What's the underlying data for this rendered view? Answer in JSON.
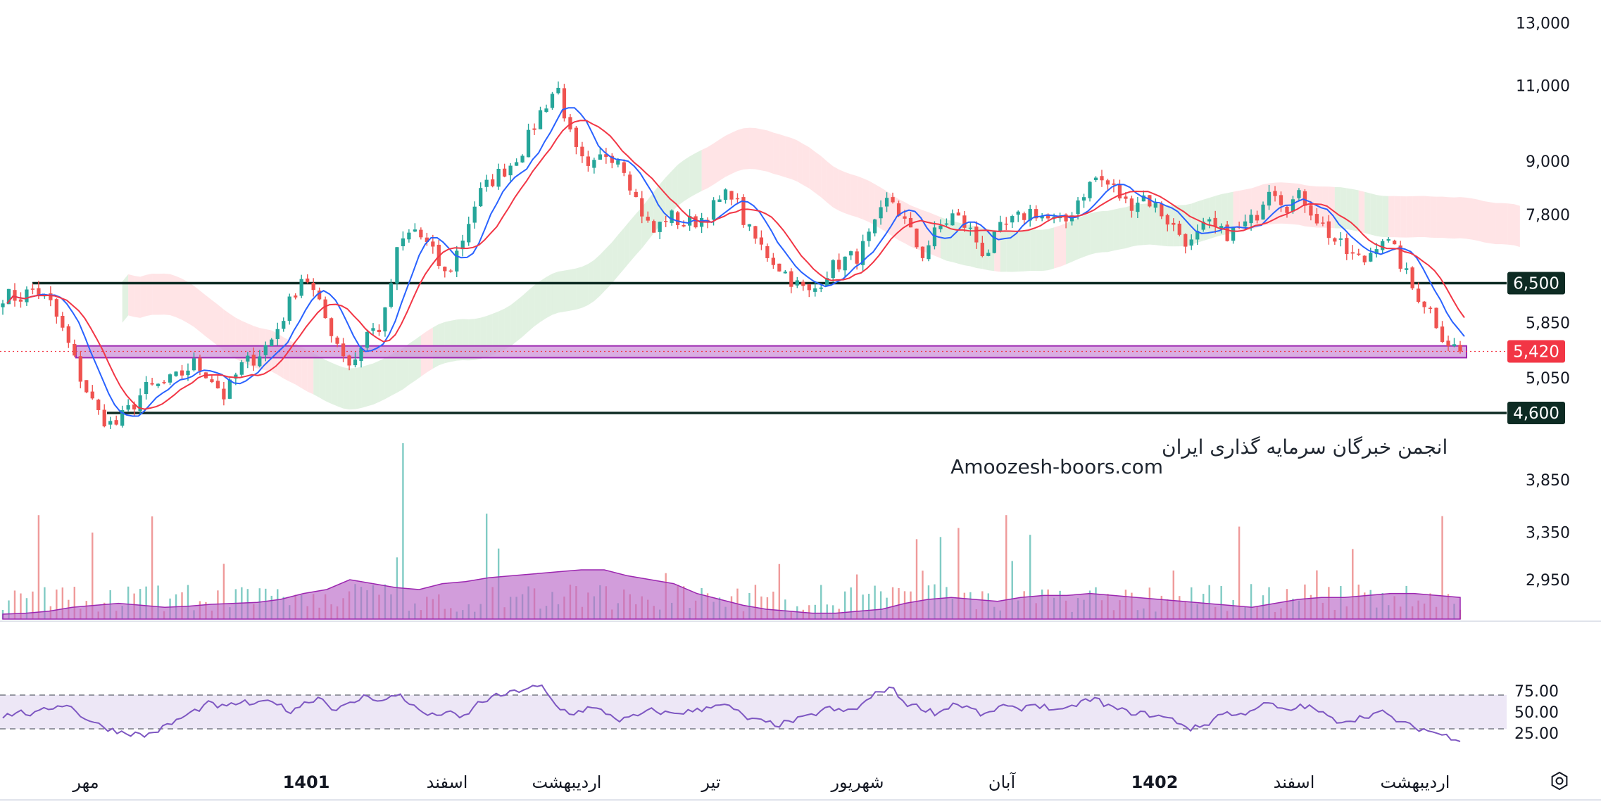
{
  "watermark": {
    "line1": "انجمن خبرگان سرمایه گذاری ایران",
    "line2": "Amoozesh-boors.com"
  },
  "colors": {
    "up": "#26a69a",
    "down": "#ef5350",
    "ma_fast": "#2962ff",
    "ma_slow": "#f23645",
    "level_line": "#0d2b23",
    "zone_fill": "#ce93d8",
    "zone_stroke": "#9c27b0",
    "last_price": "#f23645",
    "cloud_bull": "#c8e6c9",
    "cloud_bear": "#ffcdd2",
    "volume_area": "#ba68c8",
    "rsi_line": "#7e57c2",
    "rsi_band": "#ede7f6"
  },
  "chart_data": [
    {
      "type": "candlestick",
      "price_axis": {
        "scale": "log",
        "ticks": [
          "13,000",
          "11,000",
          "9,000",
          "7,800",
          "6,500",
          "5,850",
          "5,420",
          "5,050",
          "4,600",
          "3,850",
          "3,350",
          "2,950"
        ],
        "tick_values": [
          13000,
          11000,
          9000,
          7800,
          6500,
          5850,
          5420,
          5050,
          4600,
          3850,
          3350,
          2950
        ]
      },
      "time_axis": {
        "labels": [
          "مهر",
          "1401",
          "اسفند",
          "اردیبهشت",
          "تیر",
          "شهریور",
          "آبان",
          "1402",
          "اسفند",
          "اردیبهشت"
        ],
        "bold": [
          false,
          true,
          false,
          false,
          false,
          false,
          false,
          true,
          false,
          false
        ]
      },
      "horizontal_levels": [
        {
          "price": 6500,
          "label": "6,500"
        },
        {
          "price": 4600,
          "label": "4,600"
        }
      ],
      "support_zone": {
        "low": 5330,
        "high": 5500
      },
      "last_price": {
        "value": 5420,
        "label": "5,420"
      },
      "close_path": [
        6300,
        6250,
        6400,
        6150,
        5600,
        5000,
        4600,
        4430,
        4650,
        4900,
        4950,
        5050,
        5250,
        5100,
        4800,
        5200,
        5350,
        5600,
        6100,
        6700,
        6100,
        5600,
        5200,
        5700,
        5800,
        7200,
        7500,
        7100,
        6600,
        7300,
        8200,
        8600,
        8900,
        9400,
        10300,
        11000,
        9300,
        8700,
        9200,
        9100,
        8100,
        7400,
        7800,
        7600,
        7700,
        8000,
        8300,
        7500,
        7100,
        6800,
        6500,
        6300,
        6700,
        6900,
        7000,
        7500,
        8200,
        7600,
        7000,
        7500,
        7800,
        7500,
        7000,
        7500,
        7700,
        7900,
        7700,
        7600,
        8200,
        8600,
        8400,
        8000,
        8200,
        7900,
        7500,
        7200,
        7600,
        7400,
        7500,
        7700,
        8500,
        8000,
        8200,
        7700,
        7300,
        7000,
        6900,
        7400,
        7000,
        6400,
        6100,
        5600,
        5420
      ],
      "volume_ma": [
        0.05,
        0.06,
        0.08,
        0.12,
        0.14,
        0.16,
        0.14,
        0.12,
        0.13,
        0.15,
        0.16,
        0.17,
        0.2,
        0.26,
        0.3,
        0.4,
        0.36,
        0.32,
        0.3,
        0.36,
        0.38,
        0.42,
        0.44,
        0.46,
        0.48,
        0.5,
        0.5,
        0.44,
        0.4,
        0.36,
        0.26,
        0.2,
        0.14,
        0.1,
        0.08,
        0.06,
        0.06,
        0.08,
        0.1,
        0.16,
        0.2,
        0.22,
        0.2,
        0.18,
        0.22,
        0.24,
        0.24,
        0.26,
        0.24,
        0.22,
        0.2,
        0.18,
        0.16,
        0.14,
        0.12,
        0.16,
        0.2,
        0.22,
        0.22,
        0.24,
        0.26,
        0.26,
        0.24,
        0.22
      ],
      "rsi": {
        "ticks": [
          "75.00",
          "50.00",
          "25.00"
        ],
        "tick_values": [
          75,
          50,
          25
        ],
        "band": [
          30,
          70
        ],
        "values": [
          45,
          50,
          47,
          55,
          60,
          45,
          35,
          28,
          25,
          22,
          30,
          40,
          50,
          60,
          55,
          62,
          58,
          65,
          50,
          60,
          68,
          52,
          60,
          70,
          62,
          72,
          55,
          45,
          50,
          42,
          60,
          68,
          72,
          78,
          80,
          55,
          48,
          55,
          50,
          40,
          45,
          52,
          48,
          50,
          52,
          60,
          55,
          42,
          38,
          35,
          40,
          45,
          55,
          50,
          55,
          70,
          80,
          60,
          55,
          48,
          60,
          55,
          45,
          58,
          52,
          60,
          55,
          50,
          62,
          65,
          55,
          50,
          48,
          45,
          40,
          30,
          35,
          50,
          45,
          55,
          60,
          50,
          58,
          52,
          40,
          40,
          45,
          50,
          40,
          32,
          28,
          22,
          18
        ]
      }
    }
  ]
}
